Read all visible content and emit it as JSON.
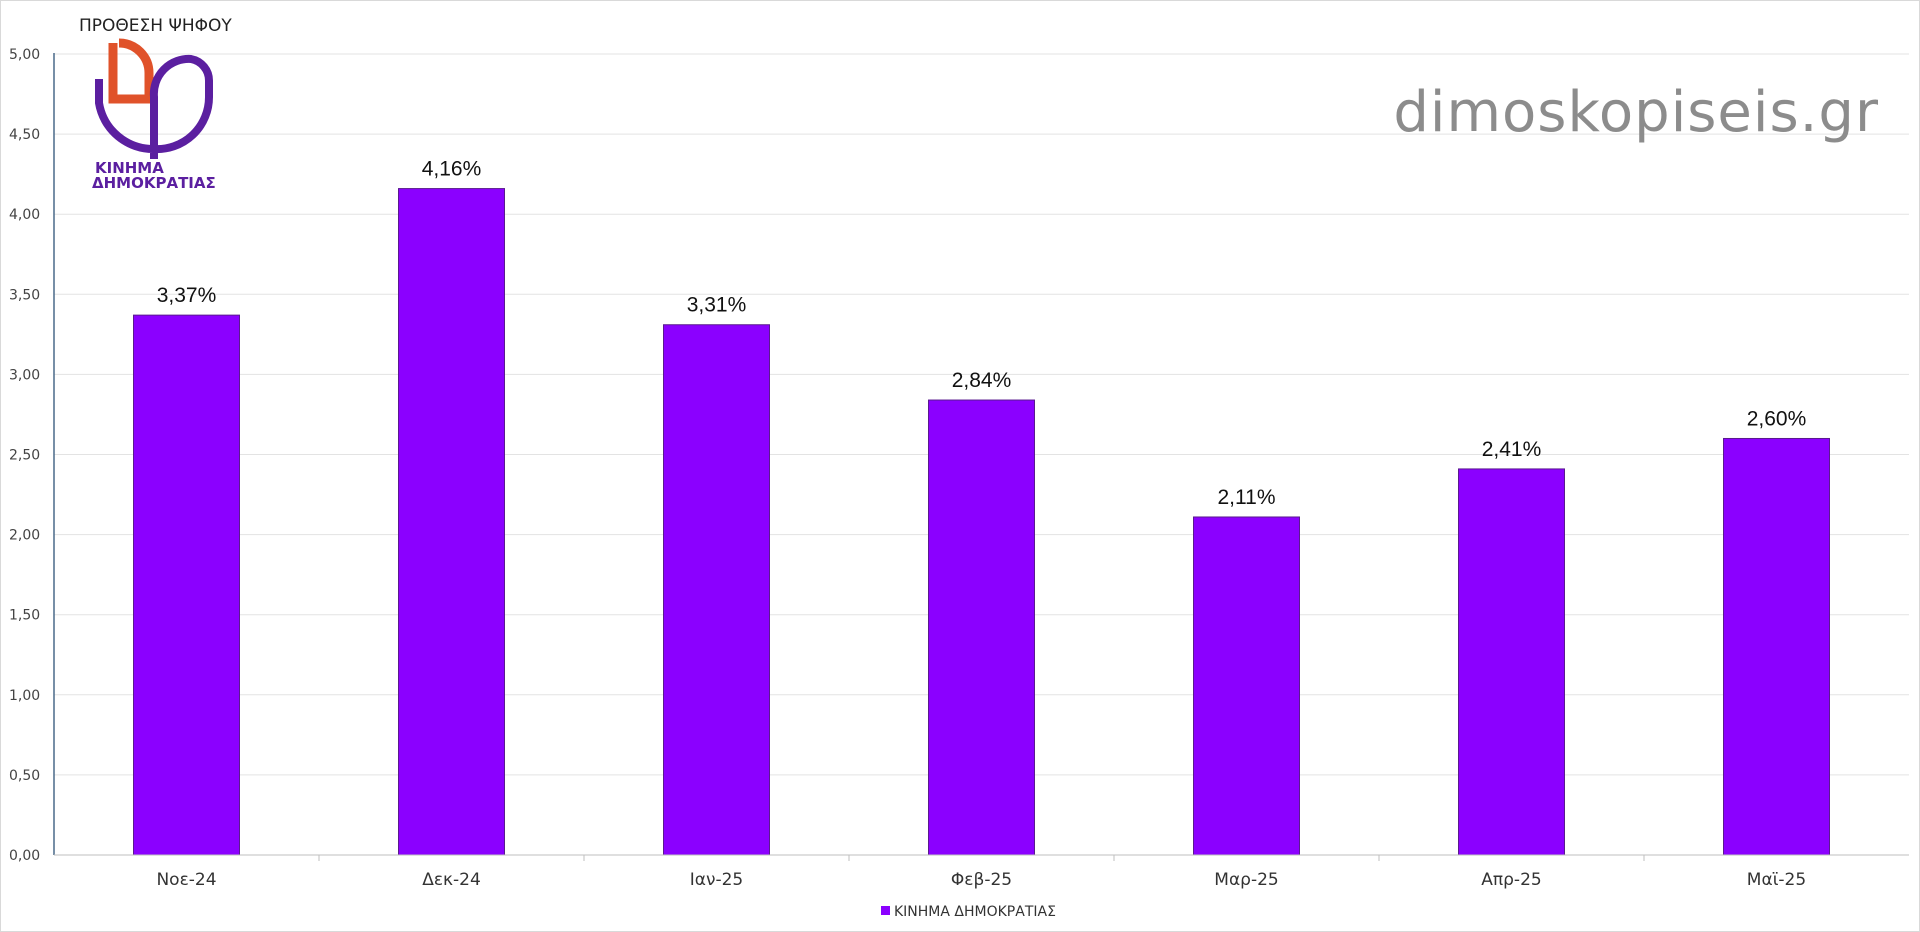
{
  "chart_data": {
    "type": "bar",
    "title": "ΠΡΟΘΕΣΗ ΨΗΦΟΥ",
    "categories": [
      "Νοε-24",
      "Δεκ-24",
      "Ιαν-25",
      "Φεβ-25",
      "Μαρ-25",
      "Απρ-25",
      "Μαϊ-25"
    ],
    "series": [
      {
        "name": "ΚΙΝΗΜΑ ΔΗΜΟΚΡΑΤΙΑΣ",
        "values": [
          3.37,
          4.16,
          3.31,
          2.84,
          2.11,
          2.41,
          2.6
        ],
        "labels": [
          "3,37%",
          "4,16%",
          "3,31%",
          "2,84%",
          "2,11%",
          "2,41%",
          "2,60%"
        ],
        "color": "#8b00ff"
      }
    ],
    "ylim": [
      0,
      5
    ],
    "yticks": [
      "0,00",
      "0,50",
      "1,00",
      "1,50",
      "2,00",
      "2,50",
      "3,00",
      "3,50",
      "4,00",
      "4,50",
      "5,00"
    ],
    "grid": true,
    "legend": "bottom",
    "xlabel": "",
    "ylabel": ""
  },
  "logo": {
    "line1": "ΚΙΝΗΜΑ",
    "line2": "ΔΗΜΟΚΡΑΤΙΑΣ",
    "colors": {
      "orange": "#e0522a",
      "purple": "#5b1fa0"
    }
  },
  "watermark": "dimoskopiseis.gr"
}
